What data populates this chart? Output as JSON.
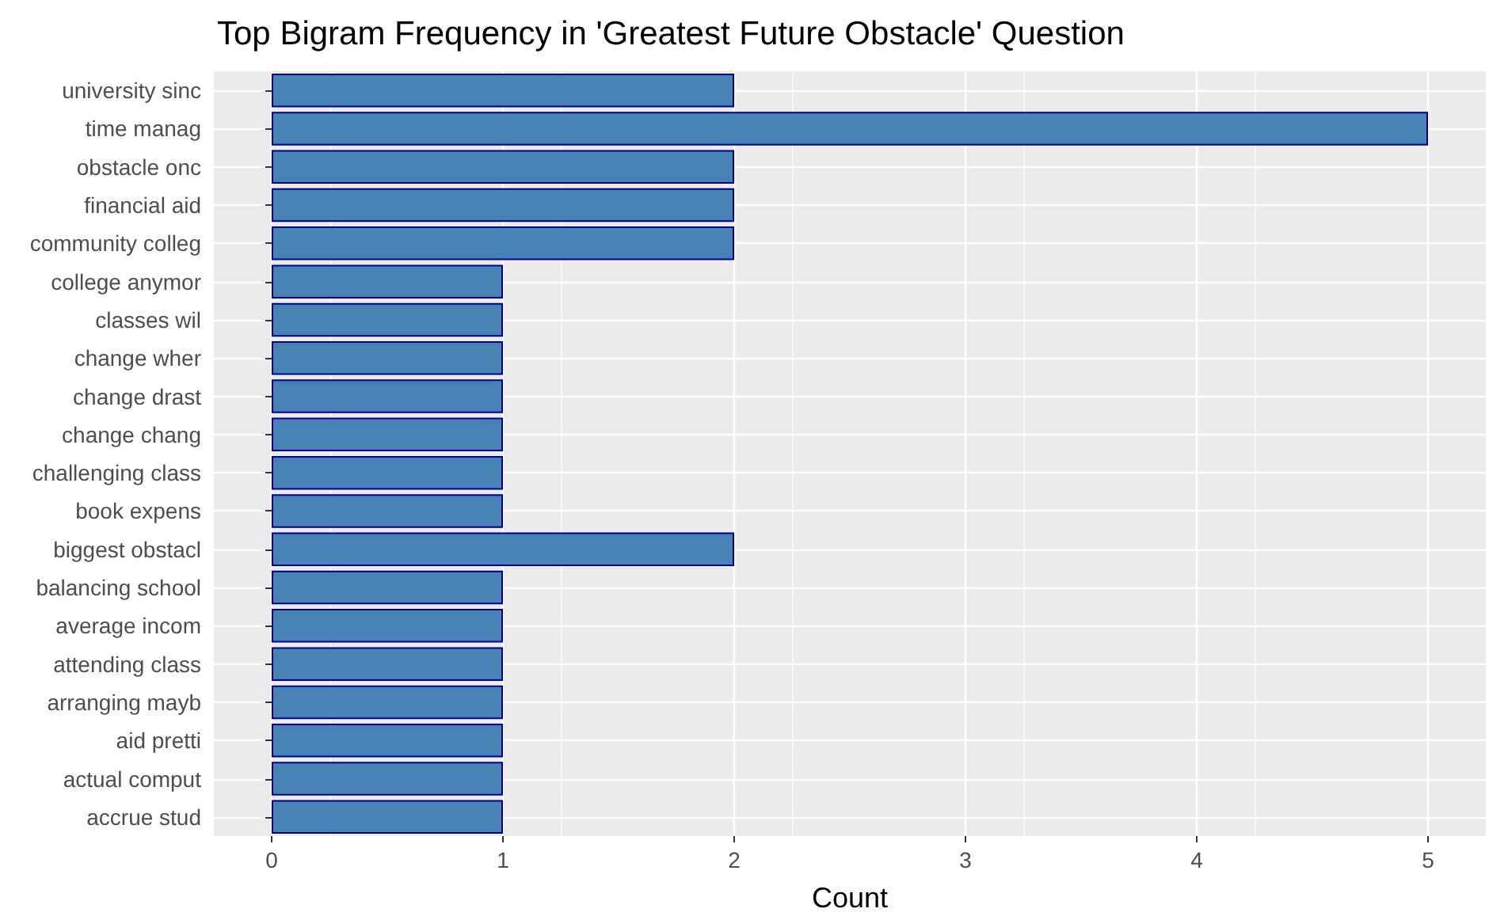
{
  "chart_data": {
    "type": "bar",
    "orientation": "horizontal",
    "title": "Top Bigram Frequency in 'Greatest Future Obstacle' Question",
    "xlabel": "Count",
    "categories": [
      "university sinc",
      "time manag",
      "obstacle onc",
      "financial aid",
      "community colleg",
      "college anymor",
      "classes wil",
      "change wher",
      "change drast",
      "change chang",
      "challenging class",
      "book expens",
      "biggest obstacl",
      "balancing school",
      "average incom",
      "attending class",
      "arranging mayb",
      "aid pretti",
      "actual comput",
      "accrue stud"
    ],
    "values": [
      2,
      5,
      2,
      2,
      2,
      1,
      1,
      1,
      1,
      1,
      1,
      1,
      2,
      1,
      1,
      1,
      1,
      1,
      1,
      1
    ],
    "color": "#4682b4",
    "xlim": [
      -0.25,
      5.25
    ],
    "xticks": [
      0,
      1,
      2,
      3,
      4,
      5
    ],
    "grid": true
  }
}
